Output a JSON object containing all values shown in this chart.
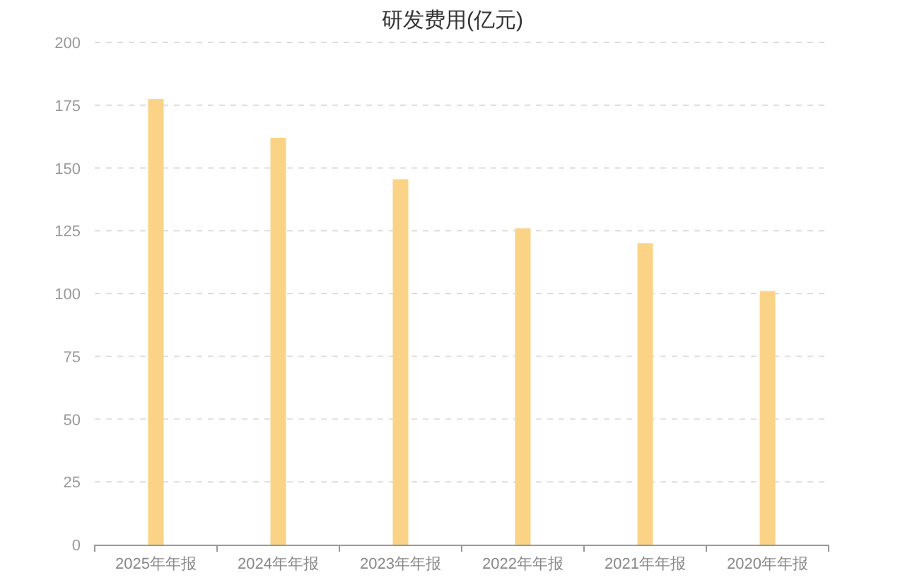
{
  "chart_data": {
    "type": "bar",
    "title": "研发费用(亿元)",
    "categories": [
      "2025年年报",
      "2024年年报",
      "2023年年报",
      "2022年年报",
      "2021年年报",
      "2020年年报"
    ],
    "values": [
      177.5,
      162,
      145.5,
      126,
      120,
      101
    ],
    "color": "#fad386",
    "ylim": [
      0,
      200
    ],
    "yticks": [
      0,
      25,
      50,
      75,
      100,
      125,
      150,
      175,
      200
    ],
    "grid": "y"
  }
}
